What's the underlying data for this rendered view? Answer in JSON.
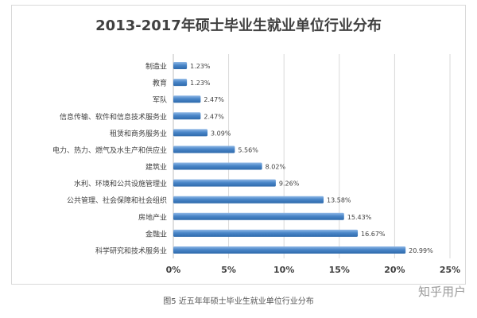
{
  "chart_data": {
    "type": "bar",
    "orientation": "horizontal",
    "title": "2013-2017年硕士毕业生就业单位行业分布",
    "categories": [
      "制造业",
      "教育",
      "军队",
      "信息传输、软件和信息技术服务业",
      "租赁和商务服务业",
      "电力、热力、燃气及水生产和供应业",
      "建筑业",
      "水利、环境和公共设施管理业",
      "公共管理、社会保障和社会组织",
      "房地产业",
      "金融业",
      "科学研究和技术服务业"
    ],
    "values": [
      1.23,
      1.23,
      2.47,
      2.47,
      3.09,
      5.56,
      8.02,
      9.26,
      13.58,
      15.43,
      16.67,
      20.99
    ],
    "value_labels": [
      "1.23%",
      "1.23%",
      "2.47%",
      "2.47%",
      "3.09%",
      "5.56%",
      "8.02%",
      "9.26%",
      "13.58%",
      "15.43%",
      "16.67%",
      "20.99%"
    ],
    "xlim": [
      0,
      25
    ],
    "x_ticks": [
      "0%",
      "5%",
      "10%",
      "15%",
      "20%",
      "25%"
    ],
    "grid": true,
    "bar_color": "#4a86c8"
  },
  "caption": "图5 近五年年硕士毕业生就业单位行业分布",
  "watermark": "知乎用户"
}
